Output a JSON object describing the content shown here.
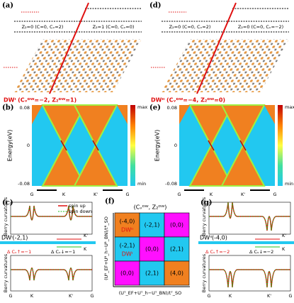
{
  "panels": {
    "a": {
      "label": "(a)",
      "left_phase": "Z₂=0 (C=0, Cᵥ=2)",
      "right_phase": "Z₂=1 (C=0, Cᵥ=0)",
      "wall": "DWᴵ (Cᵥᴰᵂ=−2, Z₂ᴰᵂ=1)"
    },
    "b": {
      "label": "(b)",
      "y_label": "Energy(eV)",
      "y_ticks": [
        "0.08",
        "0",
        "-0.08"
      ],
      "x_ticks": [
        "G",
        "K",
        "K'",
        "G"
      ],
      "colorbar": [
        "max",
        "min"
      ]
    },
    "c": {
      "label": "(c)",
      "legend": [
        "spin up",
        "spin down"
      ],
      "y_label": "Berry curvatures",
      "wall": "DWᴵ(-2,1)",
      "valleys": [
        "K'",
        "K"
      ],
      "delta_up": "Δ Cᵥ↑=−1",
      "delta_down": "Δ Cᵥ↓=−1",
      "x_ticks": [
        "G",
        "K",
        "K'",
        "G"
      ]
    },
    "d": {
      "label": "(d)",
      "left_phase": "Z₂=0 (C=0, Cᵥ=2)",
      "right_phase": "Z₂=0 (C=0, Cᵥ=−2)",
      "wall": "DWᴵᴵ (Cᵥᴰᵂ=−4, Z₂ᴰᵂ=0)"
    },
    "e": {
      "label": "(e)",
      "y_label": "Energy(eV)",
      "y_ticks": [
        "0.08",
        "0",
        "-0.08"
      ],
      "x_ticks": [
        "G",
        "K",
        "K'",
        "G"
      ],
      "colorbar": [
        "max",
        "min"
      ]
    },
    "f": {
      "label": "(f)",
      "title": "(Cᵥᴰᵂ, Z₂ᴰᵂ)",
      "y_label": "(Uᴮ_EF+Uᴮ_h−Uᴮ_BN)/tᴮ_SO",
      "x_label": "(Uᵀ_EF+Uᵀ_h−Uᵀ_BN)/tᵀ_SO",
      "cells": [
        [
          "(-4,0)",
          "(-2,1)",
          "(0,0)"
        ],
        [
          "(-2,1)",
          "(0,0)",
          "(2,1)"
        ],
        [
          "(0,0)",
          "(2,1)",
          "(4,0)"
        ]
      ],
      "cell_tags": {
        "0": "DWᴵᴵ",
        "3": "DWᴵ"
      }
    },
    "g": {
      "label": "(g)",
      "y_label": "Berry curvatures",
      "wall": "DWᴵᴵ(-4,0)",
      "valleys": [
        "K'",
        "K"
      ],
      "delta_up": "Δ Cᵥ↑=−2",
      "delta_down": "Δ Cᵥ↓=−2",
      "x_ticks": [
        "G",
        "K",
        "K'",
        "G"
      ]
    }
  }
}
